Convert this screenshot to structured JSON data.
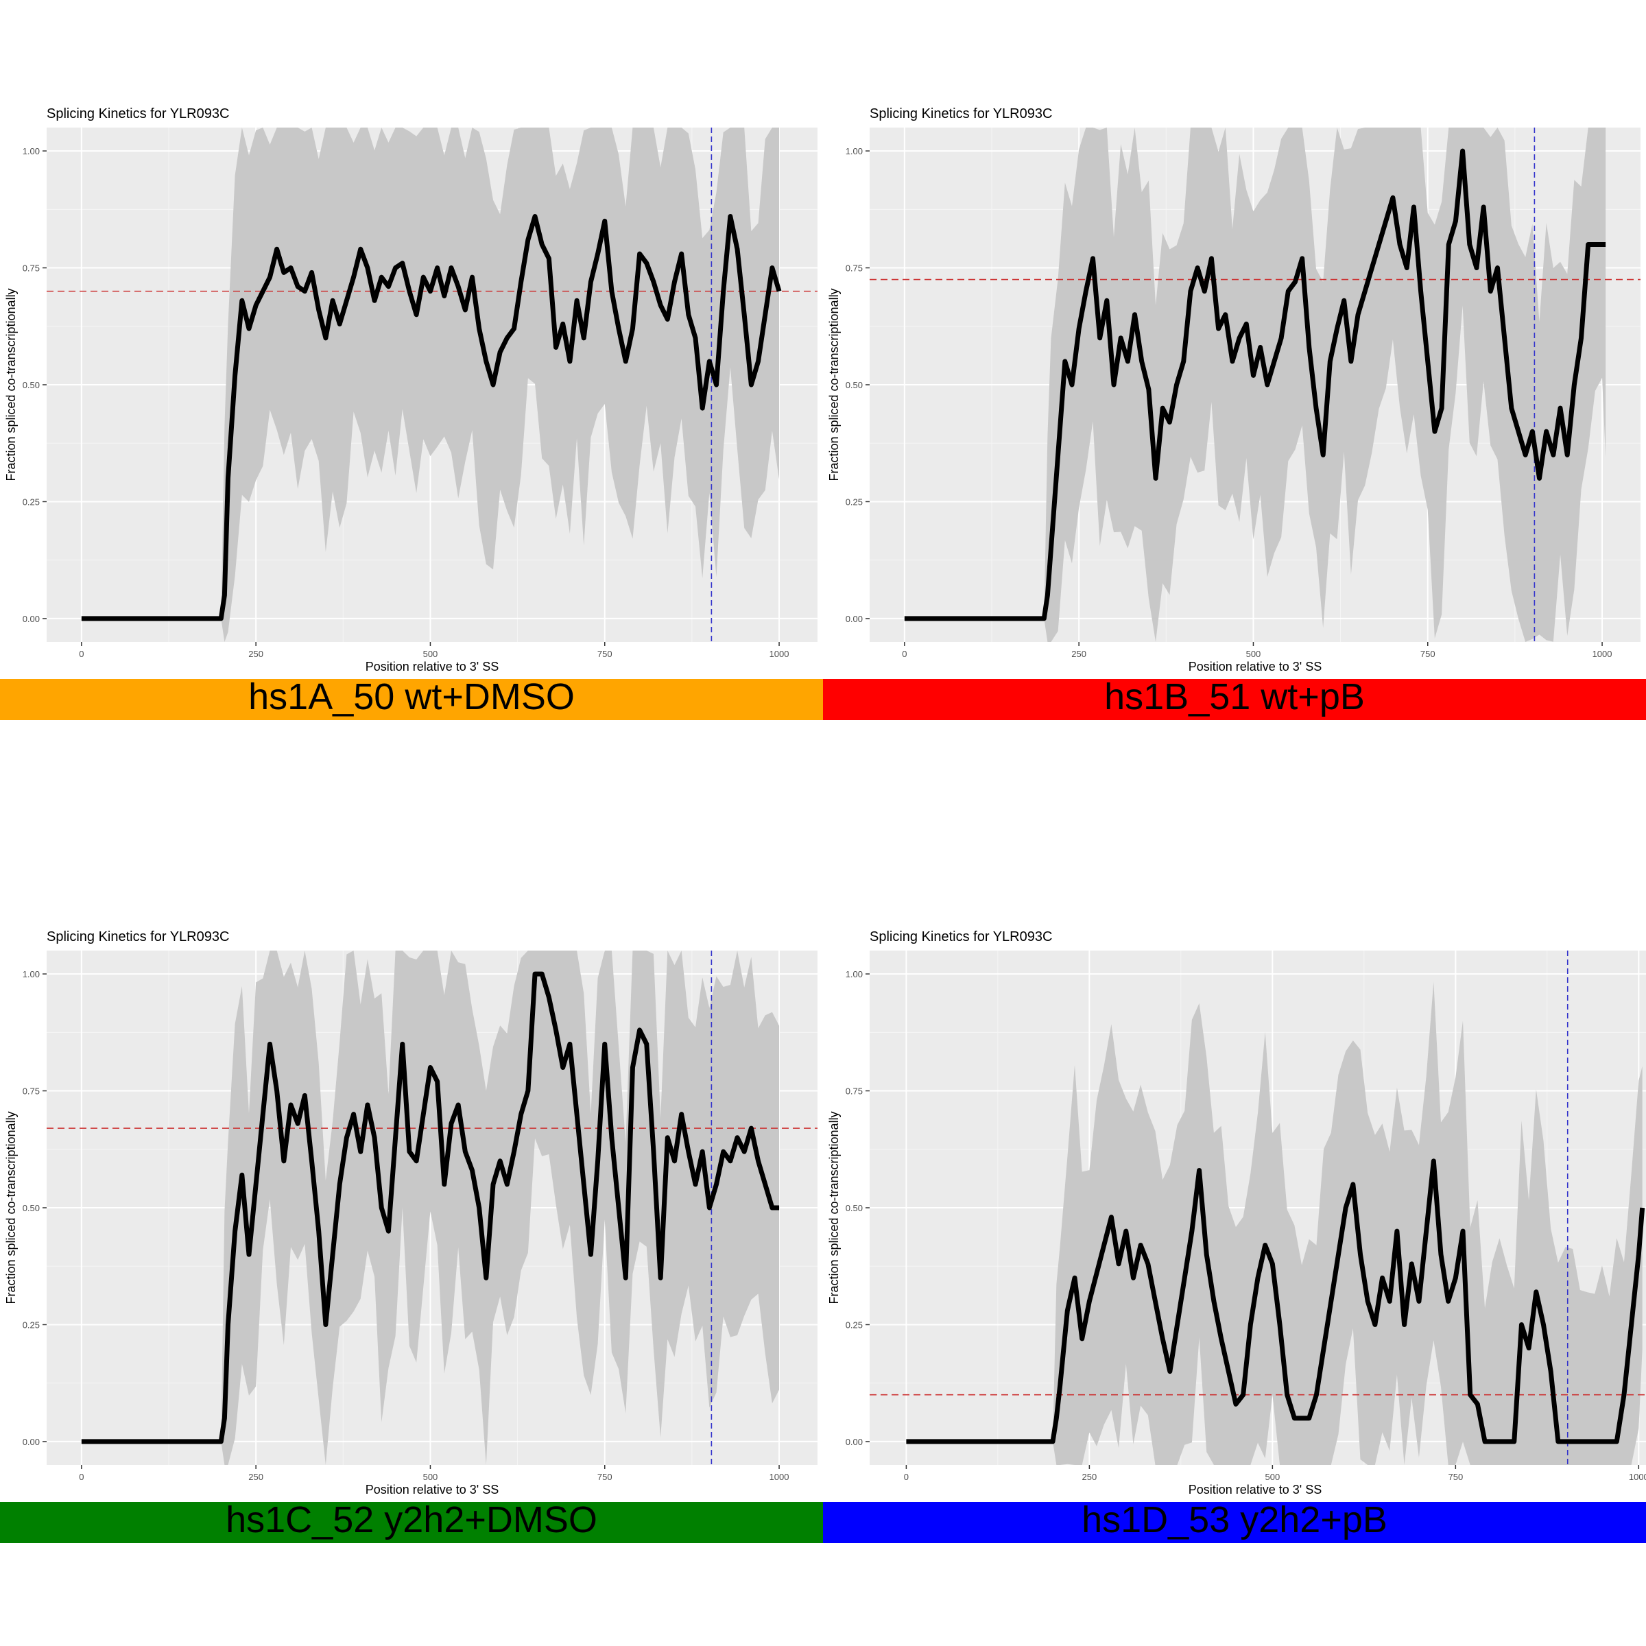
{
  "chart_data": [
    {
      "type": "line",
      "title": "Splicing Kinetics for YLR093C",
      "xlabel": "Position relative to 3' SS",
      "ylabel": "Fraction spliced co-transcriptionally",
      "xlim": [
        -50,
        1055
      ],
      "ylim": [
        -0.05,
        1.05
      ],
      "x_ticks": [
        "0",
        "250",
        "500",
        "750",
        "1000"
      ],
      "y_ticks": [
        "0.00",
        "0.25",
        "0.50",
        "0.75",
        "1.00"
      ],
      "grid": true,
      "hline": 0.7,
      "vline": 903,
      "label": "hs1A_50 wt+DMSO",
      "label_color": "#ffa500",
      "series": [
        {
          "x": [
            0,
            100,
            200,
            205,
            210,
            220,
            230,
            240,
            250,
            260,
            270,
            280,
            290,
            300,
            310,
            320,
            330,
            340,
            350,
            360,
            370,
            380,
            390,
            400,
            410,
            420,
            430,
            440,
            450,
            460,
            470,
            480,
            490,
            500,
            510,
            520,
            530,
            540,
            550,
            560,
            570,
            580,
            590,
            600,
            610,
            620,
            630,
            640,
            650,
            660,
            670,
            680,
            690,
            700,
            710,
            720,
            730,
            740,
            750,
            760,
            770,
            780,
            790,
            800,
            810,
            820,
            830,
            840,
            850,
            860,
            870,
            880,
            890,
            900,
            910,
            920,
            930,
            940,
            950,
            960,
            970,
            980,
            990,
            1000
          ],
          "y": [
            0,
            0,
            0,
            0.05,
            0.3,
            0.52,
            0.68,
            0.62,
            0.67,
            0.7,
            0.73,
            0.79,
            0.74,
            0.75,
            0.71,
            0.7,
            0.74,
            0.66,
            0.6,
            0.68,
            0.63,
            0.68,
            0.73,
            0.79,
            0.75,
            0.68,
            0.73,
            0.71,
            0.75,
            0.76,
            0.7,
            0.65,
            0.73,
            0.7,
            0.75,
            0.69,
            0.75,
            0.71,
            0.66,
            0.73,
            0.62,
            0.55,
            0.5,
            0.57,
            0.6,
            0.62,
            0.72,
            0.81,
            0.86,
            0.8,
            0.77,
            0.58,
            0.63,
            0.55,
            0.68,
            0.6,
            0.72,
            0.78,
            0.85,
            0.7,
            0.62,
            0.55,
            0.62,
            0.78,
            0.76,
            0.72,
            0.67,
            0.64,
            0.72,
            0.78,
            0.65,
            0.6,
            0.45,
            0.55,
            0.5,
            0.7,
            0.86,
            0.79,
            0.65,
            0.5,
            0.55,
            0.65,
            0.75,
            0.7
          ]
        }
      ]
    },
    {
      "type": "line",
      "title": "Splicing Kinetics for YLR093C",
      "xlabel": "Position relative to 3' SS",
      "ylabel": "Fraction spliced co-transcriptionally",
      "xlim": [
        -50,
        1055
      ],
      "ylim": [
        -0.05,
        1.05
      ],
      "x_ticks": [
        "0",
        "250",
        "500",
        "750",
        "1000"
      ],
      "y_ticks": [
        "0.00",
        "0.25",
        "0.50",
        "0.75",
        "1.00"
      ],
      "grid": true,
      "hline": 0.725,
      "vline": 903,
      "label": "hs1B_51 wt+pB",
      "label_color": "#ff0000",
      "series": [
        {
          "x": [
            0,
            100,
            200,
            205,
            210,
            220,
            230,
            240,
            250,
            260,
            270,
            280,
            290,
            300,
            310,
            320,
            330,
            340,
            350,
            360,
            370,
            380,
            390,
            400,
            410,
            420,
            430,
            440,
            450,
            460,
            470,
            480,
            490,
            500,
            510,
            520,
            530,
            540,
            550,
            560,
            570,
            580,
            590,
            600,
            610,
            620,
            630,
            640,
            650,
            660,
            670,
            680,
            690,
            700,
            710,
            720,
            730,
            740,
            750,
            760,
            770,
            780,
            790,
            800,
            810,
            820,
            830,
            840,
            850,
            860,
            870,
            880,
            890,
            900,
            910,
            920,
            930,
            940,
            950,
            960,
            970,
            980,
            990,
            1000,
            1005
          ],
          "y": [
            0,
            0,
            0,
            0.05,
            0.15,
            0.35,
            0.55,
            0.5,
            0.62,
            0.7,
            0.77,
            0.6,
            0.68,
            0.5,
            0.6,
            0.55,
            0.65,
            0.55,
            0.49,
            0.3,
            0.45,
            0.42,
            0.5,
            0.55,
            0.7,
            0.75,
            0.7,
            0.77,
            0.62,
            0.65,
            0.55,
            0.6,
            0.63,
            0.52,
            0.58,
            0.5,
            0.55,
            0.6,
            0.7,
            0.72,
            0.77,
            0.58,
            0.45,
            0.35,
            0.55,
            0.62,
            0.68,
            0.55,
            0.65,
            0.7,
            0.75,
            0.8,
            0.85,
            0.9,
            0.8,
            0.75,
            0.88,
            0.7,
            0.55,
            0.4,
            0.45,
            0.8,
            0.85,
            1.0,
            0.8,
            0.75,
            0.88,
            0.7,
            0.75,
            0.6,
            0.45,
            0.4,
            0.35,
            0.4,
            0.3,
            0.4,
            0.35,
            0.45,
            0.35,
            0.5,
            0.6,
            0.8,
            0.8,
            0.8,
            0.8
          ]
        }
      ]
    },
    {
      "type": "line",
      "title": "Splicing Kinetics for YLR093C",
      "xlabel": "Position relative to 3' SS",
      "ylabel": "Fraction spliced co-transcriptionally",
      "xlim": [
        -50,
        1055
      ],
      "ylim": [
        -0.05,
        1.05
      ],
      "x_ticks": [
        "0",
        "250",
        "500",
        "750",
        "1000"
      ],
      "y_ticks": [
        "0.00",
        "0.25",
        "0.50",
        "0.75",
        "1.00"
      ],
      "grid": true,
      "hline": 0.67,
      "vline": 903,
      "label": "hs1C_52 y2h2+DMSO",
      "label_color": "#008000",
      "series": [
        {
          "x": [
            0,
            100,
            200,
            205,
            210,
            220,
            230,
            240,
            250,
            260,
            270,
            280,
            290,
            300,
            310,
            320,
            330,
            340,
            350,
            360,
            370,
            380,
            390,
            400,
            410,
            420,
            430,
            440,
            450,
            460,
            470,
            480,
            490,
            500,
            510,
            520,
            530,
            540,
            550,
            560,
            570,
            580,
            590,
            600,
            610,
            620,
            630,
            640,
            650,
            660,
            670,
            680,
            690,
            700,
            710,
            720,
            730,
            740,
            750,
            760,
            770,
            780,
            790,
            800,
            810,
            820,
            830,
            840,
            850,
            860,
            870,
            880,
            890,
            900,
            910,
            920,
            930,
            940,
            950,
            960,
            970,
            980,
            990,
            1000
          ],
          "y": [
            0,
            0,
            0,
            0.05,
            0.25,
            0.45,
            0.57,
            0.4,
            0.55,
            0.7,
            0.85,
            0.75,
            0.6,
            0.72,
            0.68,
            0.74,
            0.6,
            0.45,
            0.25,
            0.4,
            0.55,
            0.65,
            0.7,
            0.62,
            0.72,
            0.65,
            0.5,
            0.45,
            0.65,
            0.85,
            0.62,
            0.6,
            0.7,
            0.8,
            0.77,
            0.55,
            0.68,
            0.72,
            0.62,
            0.58,
            0.5,
            0.35,
            0.55,
            0.6,
            0.55,
            0.62,
            0.7,
            0.75,
            1.0,
            1.0,
            0.95,
            0.88,
            0.8,
            0.85,
            0.7,
            0.55,
            0.4,
            0.6,
            0.85,
            0.65,
            0.5,
            0.35,
            0.8,
            0.88,
            0.85,
            0.62,
            0.35,
            0.65,
            0.6,
            0.7,
            0.62,
            0.55,
            0.62,
            0.5,
            0.55,
            0.62,
            0.6,
            0.65,
            0.62,
            0.67,
            0.6,
            0.55,
            0.5,
            0.5
          ]
        }
      ]
    },
    {
      "type": "line",
      "title": "Splicing Kinetics for YLR093C",
      "xlabel": "Position relative to 3' SS",
      "ylabel": "Fraction spliced co-transcriptionally",
      "xlim": [
        -50,
        1010
      ],
      "ylim": [
        -0.05,
        1.05
      ],
      "x_ticks": [
        "0",
        "250",
        "500",
        "750",
        "1000"
      ],
      "y_ticks": [
        "0.00",
        "0.25",
        "0.50",
        "0.75",
        "1.00"
      ],
      "grid": true,
      "hline": 0.1,
      "vline": 903,
      "label": "hs1D_53 y2h2+pB",
      "label_color": "#0000ff",
      "series": [
        {
          "x": [
            0,
            100,
            200,
            205,
            210,
            220,
            230,
            240,
            250,
            260,
            270,
            280,
            290,
            300,
            310,
            320,
            330,
            340,
            350,
            360,
            370,
            380,
            390,
            400,
            410,
            420,
            430,
            440,
            450,
            460,
            470,
            480,
            490,
            500,
            510,
            520,
            530,
            540,
            550,
            560,
            570,
            580,
            590,
            600,
            610,
            620,
            630,
            640,
            650,
            660,
            670,
            680,
            690,
            700,
            710,
            720,
            730,
            740,
            750,
            760,
            770,
            780,
            790,
            800,
            810,
            820,
            830,
            840,
            850,
            860,
            870,
            880,
            890,
            900,
            910,
            920,
            930,
            940,
            950,
            960,
            970,
            980,
            990,
            1000,
            1005
          ],
          "y": [
            0,
            0,
            0,
            0.05,
            0.12,
            0.28,
            0.35,
            0.22,
            0.3,
            0.36,
            0.42,
            0.48,
            0.38,
            0.45,
            0.35,
            0.42,
            0.38,
            0.3,
            0.22,
            0.15,
            0.25,
            0.35,
            0.45,
            0.58,
            0.4,
            0.3,
            0.22,
            0.15,
            0.08,
            0.1,
            0.25,
            0.35,
            0.42,
            0.38,
            0.25,
            0.1,
            0.05,
            0.05,
            0.05,
            0.1,
            0.2,
            0.3,
            0.4,
            0.5,
            0.55,
            0.4,
            0.3,
            0.25,
            0.35,
            0.3,
            0.45,
            0.25,
            0.38,
            0.3,
            0.45,
            0.6,
            0.4,
            0.3,
            0.35,
            0.45,
            0.1,
            0.08,
            0.0,
            0.0,
            0.0,
            0.0,
            0.0,
            0.25,
            0.2,
            0.32,
            0.25,
            0.15,
            0.0,
            0.0,
            0.0,
            0.0,
            0.0,
            0.0,
            0.0,
            0.0,
            0.0,
            0.1,
            0.25,
            0.4,
            0.5
          ]
        }
      ]
    }
  ]
}
